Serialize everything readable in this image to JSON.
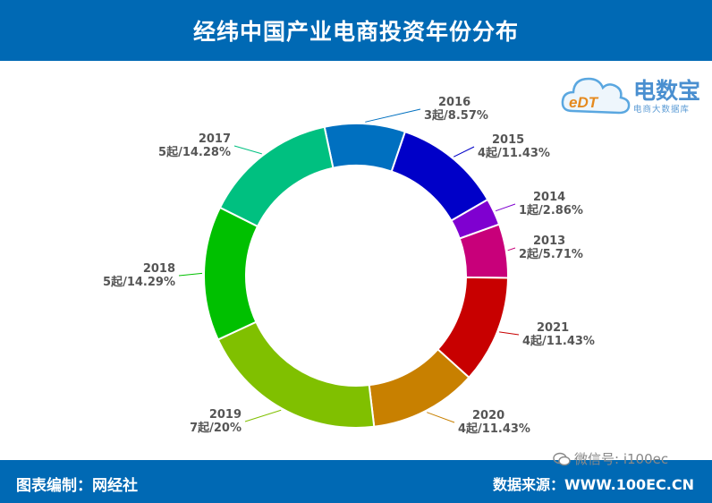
{
  "header": {
    "title": "经纬中国产业电商投资年份分布"
  },
  "footer": {
    "credit": "图表编制：网经社",
    "source": "数据来源：WWW.100EC.CN"
  },
  "watermark": {
    "text": "微信号: i100ec"
  },
  "logo": {
    "brand": "电数宝",
    "tagline": "电商大数据库",
    "mark": "eDT"
  },
  "chart_data": {
    "type": "donut",
    "title": "经纬中国产业电商投资年份分布",
    "slices": [
      {
        "label": "2016",
        "value_text": "3起/8.57%",
        "count": 3,
        "percent": 8.57,
        "color": "#0070c0"
      },
      {
        "label": "2015",
        "value_text": "4起/11.43%",
        "count": 4,
        "percent": 11.43,
        "color": "#0000c8"
      },
      {
        "label": "2014",
        "value_text": "1起/2.86%",
        "count": 1,
        "percent": 2.86,
        "color": "#7f00d0"
      },
      {
        "label": "2013",
        "value_text": "2起/5.71%",
        "count": 2,
        "percent": 5.71,
        "color": "#c8007a"
      },
      {
        "label": "2021",
        "value_text": "4起/11.43%",
        "count": 4,
        "percent": 11.43,
        "color": "#c80000"
      },
      {
        "label": "2020",
        "value_text": "4起/11.43%",
        "count": 4,
        "percent": 11.43,
        "color": "#c88000"
      },
      {
        "label": "2019",
        "value_text": "7起/20%",
        "count": 7,
        "percent": 20,
        "color": "#80c000"
      },
      {
        "label": "2018",
        "value_text": "5起/14.29%",
        "count": 5,
        "percent": 14.29,
        "color": "#00c000"
      },
      {
        "label": "2017",
        "value_text": "5起/14.28%",
        "count": 5,
        "percent": 14.28,
        "color": "#00c080"
      }
    ]
  }
}
